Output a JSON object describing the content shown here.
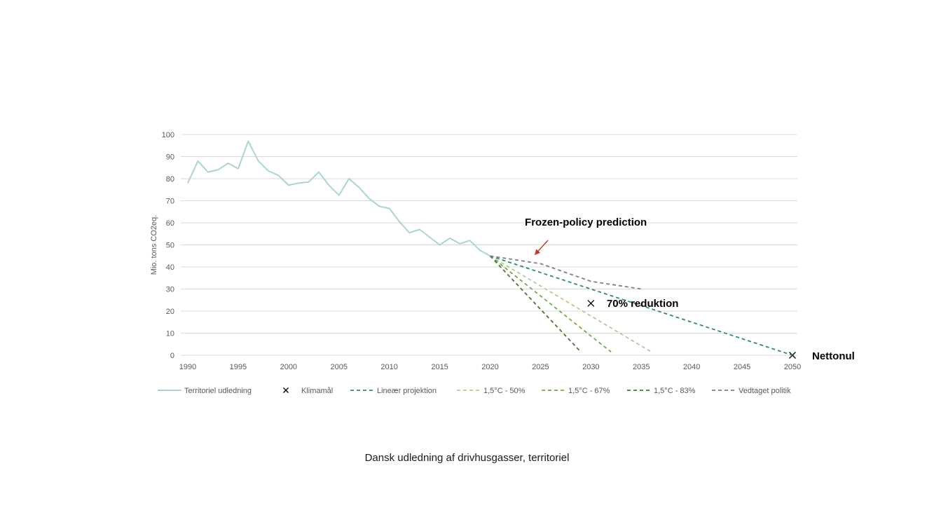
{
  "caption": "Dansk udledning af drivhusgasser, territoriel",
  "chart_data": {
    "type": "line",
    "title": "",
    "xlabel": "",
    "ylabel": "Mio. tons CO2eq.",
    "xlim": [
      1990,
      2050
    ],
    "ylim": [
      0,
      100
    ],
    "x_ticks": [
      1990,
      1995,
      2000,
      2005,
      2010,
      2015,
      2020,
      2025,
      2030,
      2035,
      2040,
      2045,
      2050
    ],
    "y_ticks": [
      0,
      10,
      20,
      30,
      40,
      50,
      60,
      70,
      80,
      90,
      100
    ],
    "grid": "horizontal",
    "legend_position": "bottom",
    "series": [
      {
        "name": "Territoriel udledning",
        "style": "solid",
        "color": "#a8d8c4",
        "x": [
          1990,
          1991,
          1992,
          1993,
          1994,
          1995,
          1996,
          1997,
          1998,
          1999,
          2000,
          2001,
          2002,
          2003,
          2004,
          2005,
          2006,
          2007,
          2008,
          2009,
          2010,
          2011,
          2012,
          2013,
          2014,
          2015,
          2016,
          2017,
          2018,
          2019,
          2020
        ],
        "y": [
          78,
          88,
          83,
          84,
          87,
          84.5,
          97,
          88,
          83.5,
          81.5,
          77,
          78,
          78.5,
          83,
          77,
          72.5,
          80,
          76,
          71,
          67.5,
          66.5,
          60.5,
          55.5,
          57,
          53.5,
          50,
          53,
          50.5,
          52,
          47.5,
          45
        ]
      },
      {
        "name": "Klimamål",
        "style": "marker-x",
        "color": "#000000",
        "x": [
          2030,
          2050
        ],
        "y": [
          23.5,
          0
        ]
      },
      {
        "name": "Lineær projektion",
        "style": "dashed",
        "color": "#2e8b6e",
        "x": [
          2020,
          2050
        ],
        "y": [
          45,
          0
        ]
      },
      {
        "name": "1,5°C - 50%",
        "style": "dashed",
        "color": "#a9d18e",
        "x": [
          2020,
          2036
        ],
        "y": [
          45,
          1.5
        ]
      },
      {
        "name": "1,5°C - 67%",
        "style": "dashed",
        "color": "#70ad47",
        "x": [
          2020,
          2032
        ],
        "y": [
          45,
          1.5
        ]
      },
      {
        "name": "1,5°C - 83%",
        "style": "dashed",
        "color": "#3f7f2b",
        "x": [
          2020,
          2029
        ],
        "y": [
          45,
          1.5
        ]
      },
      {
        "name": "Vedtaget politik",
        "style": "dashed",
        "color": "#7f7f7f",
        "x": [
          2020,
          2025,
          2030,
          2035
        ],
        "y": [
          45,
          41.5,
          33.5,
          30
        ]
      }
    ],
    "annotations": [
      {
        "text": "Frozen-policy prediction",
        "x": 2024,
        "y": 55,
        "arrow_to": [
          2024.5,
          46.5
        ],
        "arrow_color": "#c0392b"
      },
      {
        "text": "70% reduktion",
        "x": 2031.5,
        "y": 23.5
      },
      {
        "text": "Nettonul",
        "x": 2052,
        "y": 0
      }
    ]
  }
}
